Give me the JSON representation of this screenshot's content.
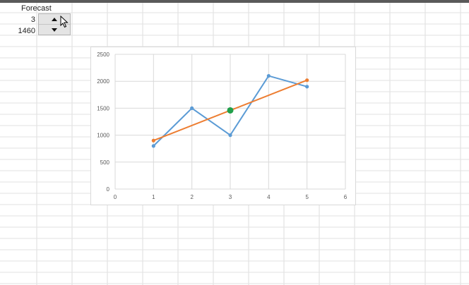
{
  "sheet": {
    "forecast_label": "Forecast",
    "input_value": "3",
    "forecast_value": "1460"
  },
  "spinner": {
    "up_icon": "triangle-up-icon",
    "down_icon": "triangle-down-icon"
  },
  "colors": {
    "actual": "#5b9bd5",
    "trend": "#ed7d31",
    "forecast_point": "#21a04a",
    "gridline": "#d9d9d9"
  },
  "chart_data": {
    "type": "scatter",
    "xlim": [
      0,
      6
    ],
    "ylim": [
      0,
      2500
    ],
    "x_ticks": [
      0,
      1,
      2,
      3,
      4,
      5,
      6
    ],
    "y_ticks": [
      0,
      500,
      1000,
      1500,
      2000,
      2500
    ],
    "grid": true,
    "legend": "none",
    "series": [
      {
        "color": "#5b9bd5",
        "x": [
          1,
          2,
          3,
          4,
          5
        ],
        "y": [
          800,
          1500,
          1000,
          2100,
          1900
        ]
      },
      {
        "color": "#ed7d31",
        "x": [
          1,
          5
        ],
        "y": [
          900,
          2020
        ]
      }
    ],
    "highlight_point": {
      "x": 3,
      "y": 1460,
      "color": "#21a04a"
    }
  }
}
